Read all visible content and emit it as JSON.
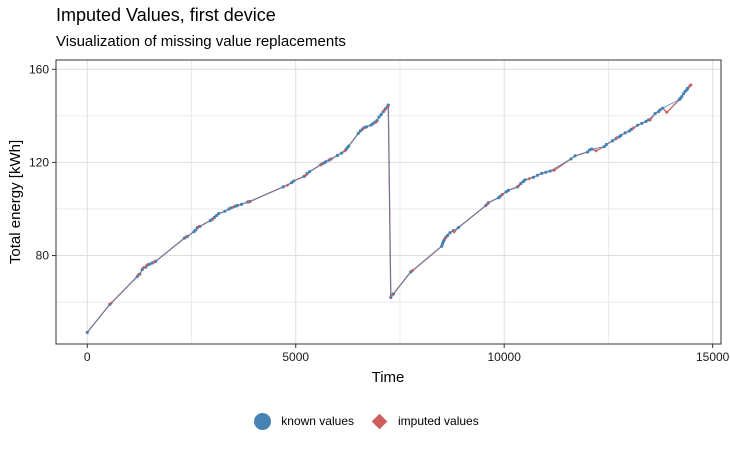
{
  "chart_data": {
    "type": "line",
    "title": "Imputed Values, first device",
    "subtitle": "Visualization of missing value replacements",
    "xlabel": "Time",
    "ylabel": "Total energy [kWh]",
    "xlim": [
      -750,
      15200
    ],
    "ylim": [
      42,
      164
    ],
    "xticks": [
      0,
      5000,
      10000,
      15000
    ],
    "xtick_labels": [
      "0",
      "5000",
      "10000",
      "15000"
    ],
    "yticks": [
      80,
      120,
      160
    ],
    "ytick_labels": [
      "80",
      "120",
      "160"
    ],
    "x_minor": [
      2500,
      7500,
      12500
    ],
    "y_minor": [
      60,
      100,
      140
    ],
    "grid": true,
    "legend_position": "bottom",
    "colors": {
      "known": "#4682B4",
      "imputed": "#CD5C5C",
      "grid": "#dedede"
    },
    "series": [
      {
        "name": "known values",
        "x": [
          0,
          540,
          1200,
          1260,
          1320,
          1400,
          1450,
          1500,
          1560,
          1640,
          2330,
          2400,
          2560,
          2600,
          2640,
          2700,
          2950,
          3000,
          3050,
          3100,
          3150,
          3300,
          3400,
          3450,
          3550,
          3600,
          3700,
          3850,
          3900,
          4700,
          4900,
          4950,
          5200,
          5270,
          5330,
          5600,
          5650,
          5700,
          5720,
          5800,
          5850,
          6000,
          6100,
          6200,
          6230,
          6270,
          6500,
          6550,
          6600,
          6650,
          6700,
          6800,
          6850,
          6900,
          6950,
          7000,
          7050,
          7100,
          7150,
          7200,
          7220,
          7280,
          7340,
          7760,
          8500,
          8520,
          8540,
          8560,
          8600,
          8640,
          8700,
          8780,
          8900,
          9560,
          9620,
          9860,
          9900,
          9950,
          10050,
          10100,
          10320,
          10400,
          10460,
          10500,
          10700,
          10800,
          10900,
          11000,
          11100,
          11600,
          11700,
          12000,
          12050,
          12100,
          12400,
          12450,
          12600,
          12680,
          12760,
          12800,
          12900,
          13000,
          13050,
          13200,
          13300,
          13400,
          13460,
          13620,
          13700,
          13740,
          13800,
          14200,
          14230,
          14260,
          14300,
          14340,
          14380,
          14400
        ],
        "y": [
          47,
          59,
          71,
          72,
          74,
          75,
          76,
          76.3,
          76.8,
          77.5,
          87.5,
          88.2,
          90.3,
          91,
          92,
          92.5,
          95,
          95.6,
          96.4,
          97.2,
          98,
          99,
          100,
          100.5,
          101.2,
          101.5,
          102,
          103,
          103.2,
          109.5,
          111.3,
          112,
          114,
          115.2,
          116,
          119,
          119.5,
          120,
          120.3,
          121,
          121.5,
          123,
          124,
          125.4,
          126.2,
          127,
          132.5,
          133.5,
          134.3,
          135,
          135.3,
          136,
          136.6,
          137.3,
          138,
          139.5,
          140.6,
          141.8,
          143,
          144,
          144.6,
          62,
          63.5,
          73,
          84,
          85,
          86,
          86.7,
          87.8,
          88.6,
          89.8,
          90.7,
          92,
          101.5,
          102.7,
          104.8,
          105.3,
          106.2,
          107.4,
          108,
          109.5,
          111,
          111.8,
          112.5,
          113.6,
          114.5,
          115.3,
          115.8,
          116.3,
          121.5,
          122.8,
          124.5,
          125.4,
          125.7,
          126.8,
          127.7,
          129.3,
          130.2,
          131,
          131.6,
          132.7,
          133.5,
          134.2,
          136,
          136.8,
          137.6,
          138.3,
          141,
          141.8,
          142.6,
          143.3,
          147,
          147.6,
          148.3,
          149.5,
          150.5,
          151.2,
          151.8
        ]
      },
      {
        "name": "imputed values",
        "x": [
          570,
          1230,
          1350,
          1430,
          1600,
          2370,
          2670,
          3020,
          3500,
          3880,
          4800,
          5240,
          5620,
          5820,
          6180,
          6620,
          6920,
          7120,
          7210,
          7300,
          7800,
          8580,
          8800,
          9600,
          9950,
          10350,
          10600,
          11200,
          12200,
          12700,
          13100,
          13500,
          13900,
          14450,
          14480
        ],
        "y": [
          59.5,
          71.8,
          74.8,
          75.8,
          77.2,
          88,
          92.4,
          95.8,
          100.8,
          103.1,
          110.2,
          114.5,
          119.3,
          121.2,
          125,
          134.7,
          137.2,
          142.3,
          143.8,
          62.8,
          73.5,
          87.3,
          90.2,
          102.2,
          106.2,
          110,
          113,
          116.6,
          125,
          130.6,
          134.8,
          138.2,
          141.5,
          152.8,
          153.3
        ]
      }
    ]
  }
}
